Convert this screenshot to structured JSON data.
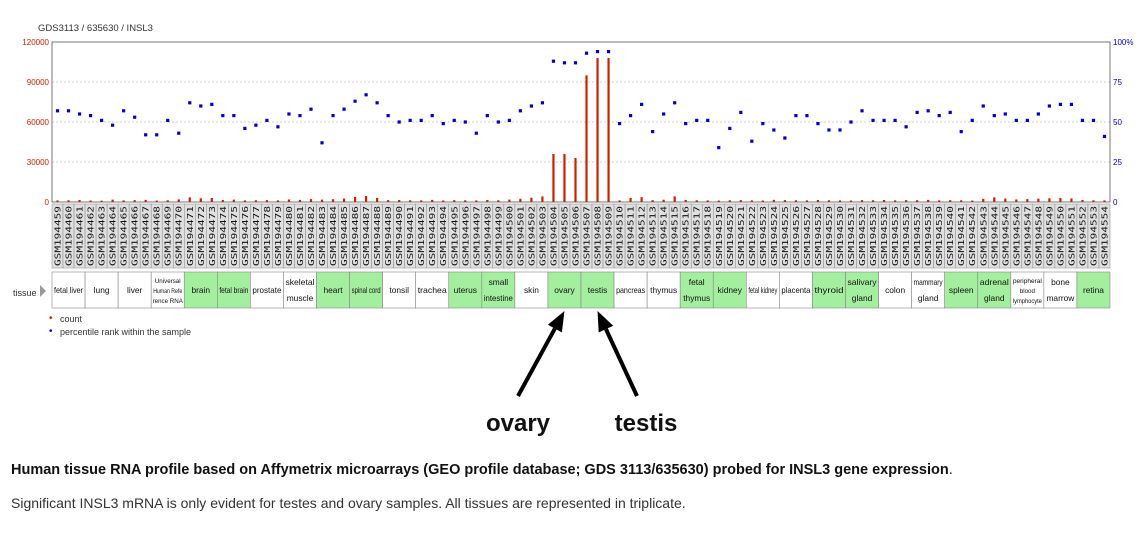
{
  "chart_data": {
    "type": "bar",
    "title": "GDS3113 / 635630 / INSL3",
    "left_axis": {
      "ticks": [
        "0",
        "30000",
        "60000",
        "90000",
        "120000"
      ],
      "ylim": [
        0,
        120000
      ],
      "color": "#cc2200"
    },
    "right_axis": {
      "ticks": [
        "0",
        "25",
        "50",
        "75",
        "100%"
      ],
      "ylim": [
        0,
        100
      ],
      "color": "#0000cc"
    },
    "samples": [
      "GSM194459",
      "GSM194460",
      "GSM194461",
      "GSM194462",
      "GSM194463",
      "GSM194464",
      "GSM194465",
      "GSM194466",
      "GSM194467",
      "GSM194468",
      "GSM194469",
      "GSM194470",
      "GSM194471",
      "GSM194472",
      "GSM194473",
      "GSM194474",
      "GSM194475",
      "GSM194476",
      "GSM194477",
      "GSM194478",
      "GSM194479",
      "GSM194480",
      "GSM194481",
      "GSM194482",
      "GSM194483",
      "GSM194484",
      "GSM194485",
      "GSM194486",
      "GSM194487",
      "GSM194488",
      "GSM194489",
      "GSM194490",
      "GSM194491",
      "GSM194492",
      "GSM194493",
      "GSM194494",
      "GSM194495",
      "GSM194496",
      "GSM194497",
      "GSM194498",
      "GSM194499",
      "GSM194500",
      "GSM194501",
      "GSM194502",
      "GSM194503",
      "GSM194504",
      "GSM194505",
      "GSM194506",
      "GSM194507",
      "GSM194508",
      "GSM194509",
      "GSM194510",
      "GSM194511",
      "GSM194512",
      "GSM194513",
      "GSM194514",
      "GSM194515",
      "GSM194516",
      "GSM194517",
      "GSM194518",
      "GSM194519",
      "GSM194520",
      "GSM194521",
      "GSM194522",
      "GSM194523",
      "GSM194524",
      "GSM194525",
      "GSM194526",
      "GSM194527",
      "GSM194528",
      "GSM194529",
      "GSM194530",
      "GSM194531",
      "GSM194532",
      "GSM194533",
      "GSM194534",
      "GSM194535",
      "GSM194536",
      "GSM194537",
      "GSM194538",
      "GSM194539",
      "GSM194540",
      "GSM194541",
      "GSM194542",
      "GSM194543",
      "GSM194544",
      "GSM194545",
      "GSM194546",
      "GSM194547",
      "GSM194548",
      "GSM194549",
      "GSM194550",
      "GSM194551",
      "GSM194552",
      "GSM194553",
      "GSM194554"
    ],
    "series": [
      {
        "name": "count",
        "color": "#cc2200",
        "values": [
          1200,
          1300,
          1500,
          1100,
          1000,
          1800,
          1200,
          1400,
          1600,
          1100,
          1300,
          2000,
          3500,
          2800,
          3000,
          1500,
          1800,
          1200,
          1300,
          1400,
          1200,
          1900,
          1600,
          2200,
          1800,
          2100,
          2600,
          3800,
          4500,
          3000,
          1400,
          1500,
          1300,
          1200,
          1600,
          1100,
          1400,
          1300,
          1200,
          1500,
          1300,
          1800,
          2400,
          3200,
          4200,
          36000,
          36000,
          33000,
          95000,
          108000,
          108000,
          1200,
          3000,
          3600,
          1400,
          1700,
          4200,
          1500,
          1300,
          1200,
          1100,
          1300,
          1400,
          1200,
          1100,
          1600,
          1400,
          1300,
          1200,
          1500,
          1300,
          1200,
          1100,
          1400,
          1300,
          1500,
          1200,
          1400,
          1300,
          1600,
          1200,
          1400,
          1300,
          1100,
          2400,
          3500,
          2600,
          1900,
          2200,
          2500,
          2800,
          3000,
          2700,
          1500,
          1300,
          1200
        ]
      },
      {
        "name": "percentile rank within the sample",
        "color": "#0000cc",
        "values": [
          57,
          57,
          55,
          54,
          51,
          48,
          57,
          53,
          42,
          42,
          51,
          43,
          62,
          60,
          61,
          54,
          54,
          46,
          48,
          51,
          47,
          55,
          54,
          58,
          37,
          54,
          58,
          63,
          67,
          62,
          54,
          50,
          51,
          51,
          54,
          49,
          51,
          50,
          43,
          54,
          50,
          51,
          57,
          60,
          62,
          88,
          87,
          87,
          93,
          94,
          94,
          49,
          54,
          61,
          44,
          55,
          62,
          49,
          51,
          51,
          34,
          46,
          56,
          38,
          49,
          45,
          40,
          54,
          54,
          49,
          45,
          45,
          50,
          57,
          51,
          51,
          51,
          47,
          56,
          57,
          54,
          56,
          44,
          51,
          60,
          54,
          55,
          51,
          51,
          55,
          60,
          61,
          61,
          51,
          51,
          41
        ]
      }
    ],
    "legend": [
      "count",
      "percentile rank within the sample"
    ],
    "tissue_label": "tissue",
    "tissues": [
      {
        "name": "fetal liver",
        "start": 0,
        "n": 3,
        "shade": "w"
      },
      {
        "name": "lung",
        "start": 3,
        "n": 3,
        "shade": "w"
      },
      {
        "name": "liver",
        "start": 6,
        "n": 3,
        "shade": "w"
      },
      {
        "name": "Universal Human Reference RNA",
        "lines": [
          "Universal",
          "Human Refe",
          "rence RNA"
        ],
        "start": 9,
        "n": 3,
        "shade": "w"
      },
      {
        "name": "brain",
        "start": 12,
        "n": 3,
        "shade": "g"
      },
      {
        "name": "fetal brain",
        "start": 15,
        "n": 3,
        "shade": "g"
      },
      {
        "name": "prostate",
        "start": 18,
        "n": 3,
        "shade": "w"
      },
      {
        "name": "skeletal muscle",
        "lines": [
          "skeletal",
          "muscle"
        ],
        "start": 21,
        "n": 3,
        "shade": "w"
      },
      {
        "name": "heart",
        "start": 24,
        "n": 3,
        "shade": "g"
      },
      {
        "name": "spinal cord",
        "start": 27,
        "n": 3,
        "shade": "g"
      },
      {
        "name": "tonsil",
        "start": 30,
        "n": 3,
        "shade": "w"
      },
      {
        "name": "trachea",
        "start": 33,
        "n": 3,
        "shade": "w"
      },
      {
        "name": "uterus",
        "start": 36,
        "n": 3,
        "shade": "g"
      },
      {
        "name": "small intestine",
        "lines": [
          "small",
          "intestine"
        ],
        "start": 39,
        "n": 3,
        "shade": "g"
      },
      {
        "name": "skin",
        "start": 42,
        "n": 3,
        "shade": "w"
      },
      {
        "name": "ovary",
        "start": 45,
        "n": 3,
        "shade": "g"
      },
      {
        "name": "testis",
        "start": 48,
        "n": 3,
        "shade": "g"
      },
      {
        "name": "pancreas",
        "start": 51,
        "n": 3,
        "shade": "w"
      },
      {
        "name": "thymus",
        "start": 54,
        "n": 3,
        "shade": "w"
      },
      {
        "name": "fetal thymus",
        "lines": [
          "fetal",
          "thymus"
        ],
        "start": 57,
        "n": 3,
        "shade": "g"
      },
      {
        "name": "kidney",
        "start": 60,
        "n": 3,
        "shade": "g"
      },
      {
        "name": "fetal kidney",
        "start": 63,
        "n": 3,
        "shade": "w"
      },
      {
        "name": "placenta",
        "start": 66,
        "n": 3,
        "shade": "w"
      },
      {
        "name": "thyroid",
        "start": 69,
        "n": 3,
        "shade": "g"
      },
      {
        "name": "salivary gland",
        "lines": [
          "salivary",
          "gland"
        ],
        "start": 72,
        "n": 3,
        "shade": "g"
      },
      {
        "name": "colon",
        "start": 75,
        "n": 3,
        "shade": "w"
      },
      {
        "name": "mammary gland",
        "lines": [
          "mammary",
          "gland"
        ],
        "start": 78,
        "n": 3,
        "shade": "w"
      },
      {
        "name": "spleen",
        "start": 81,
        "n": 3,
        "shade": "g"
      },
      {
        "name": "adrenal gland",
        "lines": [
          "adrenal",
          "gland"
        ],
        "start": 84,
        "n": 3,
        "shade": "g"
      },
      {
        "name": "peripheral blood lymphocyte",
        "lines": [
          "peripheral",
          "blood",
          "lymphocyte"
        ],
        "start": 87,
        "n": 3,
        "shade": "w"
      },
      {
        "name": "bone marrow",
        "lines": [
          "bone",
          "marrow"
        ],
        "start": 90,
        "n": 3,
        "shade": "w"
      },
      {
        "name": "retina",
        "start": 93,
        "n": 3,
        "shade": "g"
      }
    ],
    "annotations": [
      {
        "text": "ovary",
        "target": "ovary"
      },
      {
        "text": "testis",
        "target": "testis"
      }
    ],
    "grid": true,
    "legend_position": "bottom-left"
  },
  "caption": {
    "title": "Human tissue RNA profile based on Affymetrix microarrays (GEO profile database; GDS 3113/635630) probed for INSL3 gene expression",
    "title_end": ".",
    "body": "Significant INSL3 mRNA is only evident for testes and ovary samples. All tissues are represented in triplicate."
  }
}
